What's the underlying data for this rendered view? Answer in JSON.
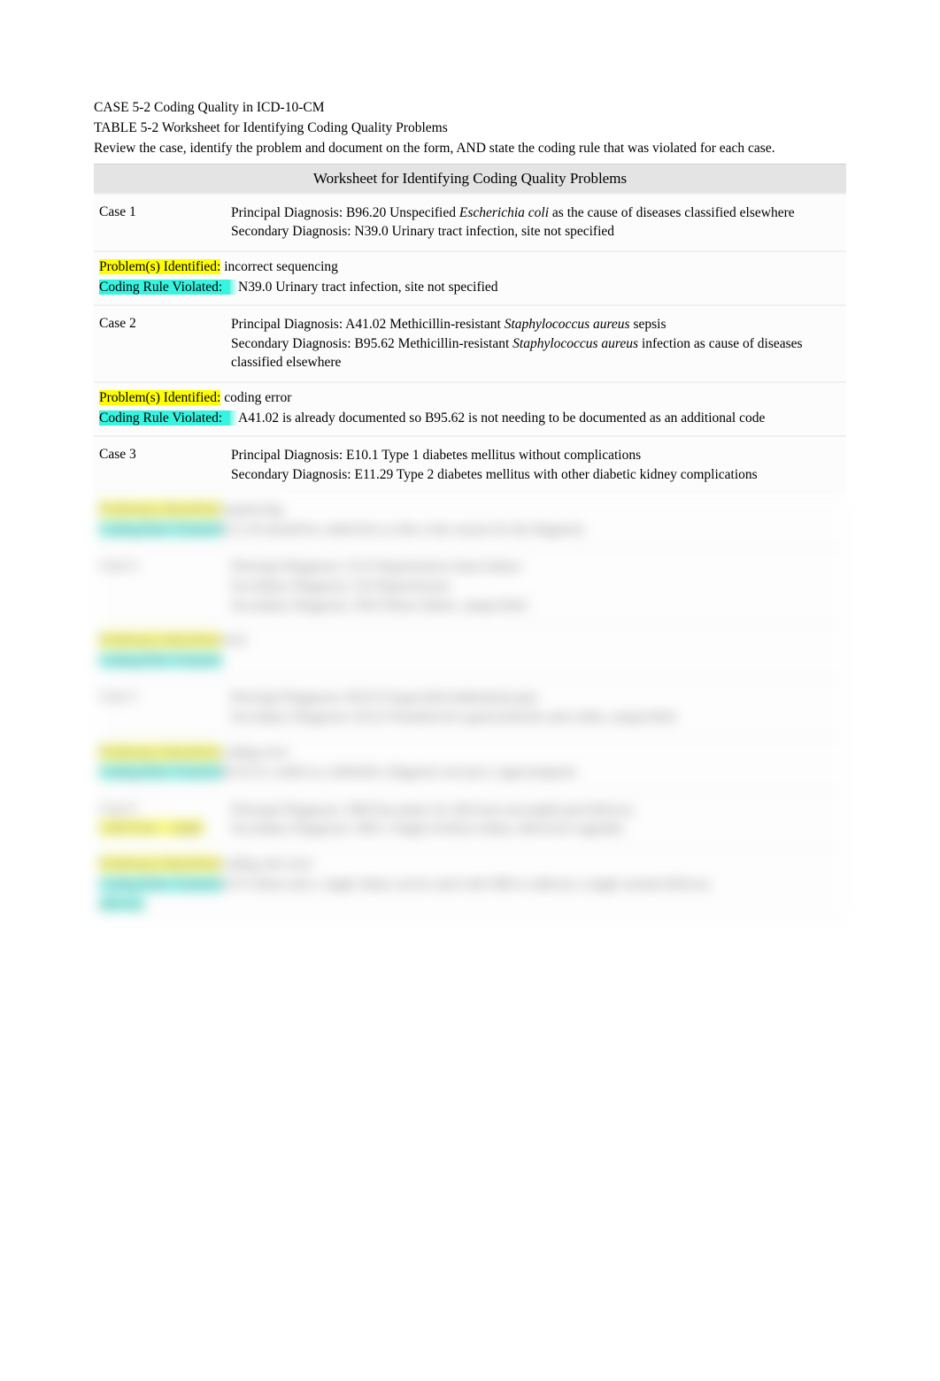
{
  "header": {
    "case_title": "CASE 5-2 Coding Quality in ICD-10-CM",
    "table_title": "TABLE 5-2  Worksheet for Identifying Coding Quality Problems",
    "instructions": "Review the case, identify the problem and document on the form, AND state the coding rule that was violated for each case."
  },
  "worksheet_title": "Worksheet for Identifying Coding Quality Problems",
  "labels": {
    "problems": "Problem(s) Identified:",
    "rule": "Coding Rule Violated:"
  },
  "case1": {
    "label": "Case 1",
    "principal_pre": "Principal Diagnosis: B96.20 Unspecified ",
    "principal_em": "Escherichia coli",
    "principal_post": "        as the cause of diseases classified elsewhere",
    "secondary": "Secondary Diagnosis: N39.0 Urinary tract infection, site not specified",
    "problem": " incorrect sequencing",
    "rule": "N39.0 Urinary tract infection, site not specified"
  },
  "case2": {
    "label": "Case 2",
    "principal_pre": "Principal Diagnosis: A41.02 Methicillin-resistant ",
    "principal_em": "Staphylococcus aureus",
    "principal_post": " sepsis",
    "secondary_pre": "Secondary Diagnosis: B95.62 Methicillin-resistant ",
    "secondary_em": "Staphylococcus aureus",
    "secondary_post": " infection as cause of diseases classified elsewhere",
    "problem": " coding error",
    "rule": "A41.02 is already documented so B95.62 is not needing to be documented as an additional code"
  },
  "case3": {
    "label": "Case 3",
    "principal": "Principal Diagnosis: E10.1 Type 1 diabetes mellitus without complications",
    "secondary": "Secondary Diagnosis: E11.29 Type 2 diabetes mellitus with other diabetic kidney complications"
  },
  "blurred": {
    "case3_problem": "sequencing",
    "case3_rule": "E11.29 should be coded first as this is the reason for the diagnosis",
    "case4": {
      "label": "Case 4",
      "principal": "Principal Diagnosis: I13.0 Hypertensive heart failure",
      "secondary1": "Secondary Diagnosis: I10 Hypertension",
      "secondary2": "Secondary Diagnosis: I50.9 Heart failure, unspecified"
    },
    "case4_problem": "error",
    "case5": {
      "label": "Case 5",
      "principal": "Principal Diagnosis: R10.9 Unspecified abdominal pain",
      "secondary": "Secondary Diagnosis: K52.9 Noninfective gastroenteritis and colitis, unspecified"
    },
    "case5_problem": "coding error",
    "case5_rule": "K52.9 is coded as a definitive diagnosis not just a sign/symptom",
    "case6": {
      "label": "Case 6",
      "principal": "Principal Diagnosis: O80 Encounter for full-term uncomplicated delivery",
      "secondary": "Secondary Diagnosis: O60.1 Single liveborn infant, delivered vaginally"
    },
    "case6_problem": "coding rule error",
    "case6_rule": "Z37.0 Born alive, single infant can be used with O80 to indicate a single normal delivery"
  },
  "colors": {
    "highlight_yellow": "#ffff00",
    "highlight_teal": "#36f4e0",
    "table_header_bg": "#e4e4e4",
    "page_bg": "#ffffff"
  }
}
